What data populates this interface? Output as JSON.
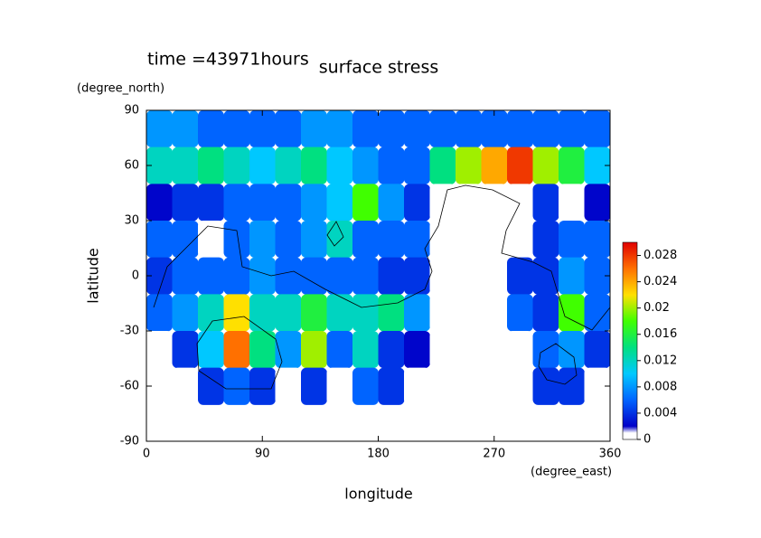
{
  "chart_data": {
    "type": "contour",
    "title": "surface stress",
    "subtitle": "time =43971hours",
    "x_label": "longitude",
    "y_label": "latitude",
    "x_unit": "(degree_east)",
    "y_unit": "(degree_north)",
    "xlim": [
      0,
      360
    ],
    "xticks": [
      0,
      90,
      180,
      270,
      360
    ],
    "ylim": [
      -90,
      90
    ],
    "yticks": [
      -90,
      -60,
      -30,
      0,
      30,
      60,
      90
    ],
    "colorbar_lim": [
      0,
      0.03
    ],
    "colorbar_ticks": [
      0,
      0.004,
      0.008,
      0.012,
      0.016,
      0.02,
      0.024,
      0.028
    ],
    "x": [
      10,
      30,
      50,
      70,
      90,
      110,
      130,
      150,
      170,
      190,
      210,
      230,
      250,
      270,
      290,
      310,
      330,
      350
    ],
    "y": [
      80,
      60,
      40,
      20,
      0,
      -20,
      -40,
      -60
    ],
    "z": [
      [
        0.008,
        0.008,
        0.006,
        0.006,
        0.006,
        0.006,
        0.008,
        0.008,
        0.006,
        0.006,
        0.006,
        0.006,
        0.006,
        0.006,
        0.006,
        0.006,
        0.006,
        0.006
      ],
      [
        0.012,
        0.012,
        0.014,
        0.012,
        0.01,
        0.012,
        0.014,
        0.01,
        0.008,
        0.006,
        0.006,
        0.014,
        0.02,
        0.024,
        0.028,
        0.02,
        0.016,
        0.01
      ],
      [
        0.002,
        0.004,
        0.004,
        0.006,
        0.006,
        0.006,
        0.008,
        0.01,
        0.018,
        0.008,
        0.004,
        0,
        0,
        0,
        0,
        0.004,
        0,
        0.002
      ],
      [
        0.006,
        0.006,
        0,
        0.006,
        0.008,
        0.006,
        0.008,
        0.012,
        0.006,
        0.006,
        0.006,
        0,
        0,
        0,
        0,
        0.004,
        0.006,
        0.006
      ],
      [
        0.004,
        0.006,
        0.006,
        0.006,
        0.008,
        0.006,
        0.006,
        0.006,
        0.006,
        0.004,
        0.004,
        0,
        0,
        0,
        0.004,
        0.004,
        0.008,
        0.006
      ],
      [
        0.006,
        0.008,
        0.012,
        0.022,
        0.012,
        0.012,
        0.016,
        0.012,
        0.012,
        0.014,
        0.008,
        0,
        0,
        0,
        0.006,
        0.004,
        0.018,
        0.006
      ],
      [
        0,
        0.004,
        0.01,
        0.026,
        0.014,
        0.008,
        0.02,
        0.006,
        0.012,
        0.004,
        0.002,
        0,
        0,
        0,
        0,
        0.006,
        0.008,
        0.004
      ],
      [
        0,
        0,
        0.004,
        0.006,
        0.004,
        0,
        0.004,
        0,
        0.006,
        0.004,
        0,
        0,
        0,
        0,
        0,
        0.004,
        0.004,
        0
      ]
    ]
  }
}
